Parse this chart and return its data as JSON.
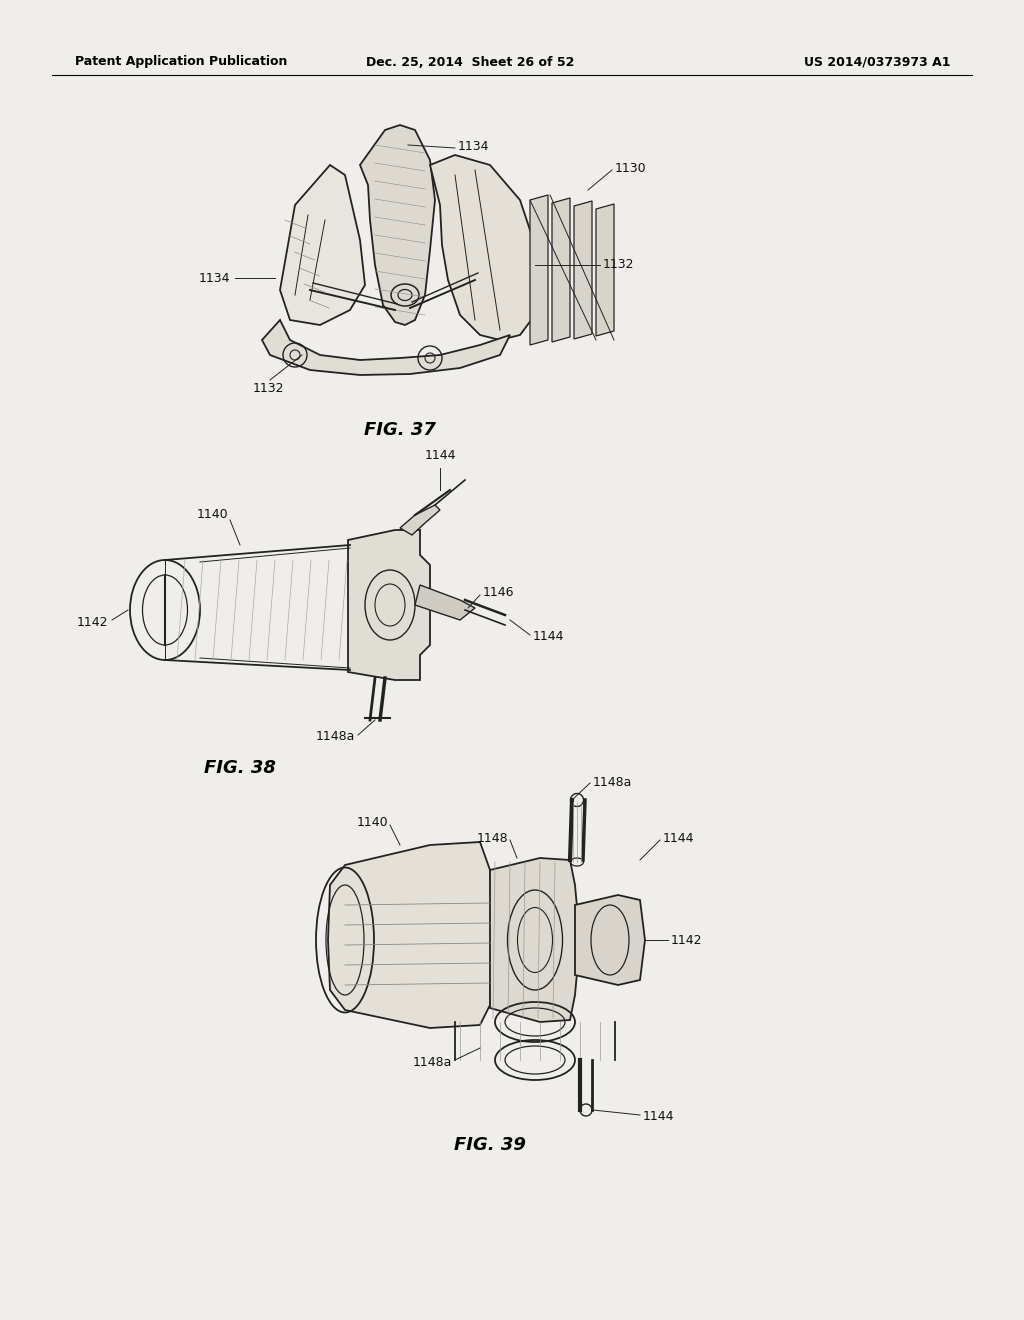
{
  "background_color": "#f0eeea",
  "page_bg": "#f0eeea",
  "header_left": "Patent Application Publication",
  "header_center": "Dec. 25, 2014  Sheet 26 of 52",
  "header_right": "US 2014/0373973 A1",
  "fig37_label": "FIG. 37",
  "fig38_label": "FIG. 38",
  "fig39_label": "FIG. 39",
  "line_color": "#222222",
  "label_color": "#111111",
  "header_fontsize": 9,
  "label_fontsize": 9,
  "figlabel_fontsize": 13
}
